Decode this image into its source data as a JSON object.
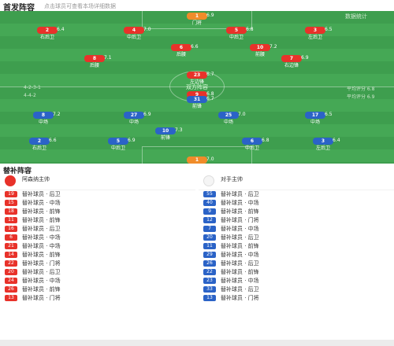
{
  "header": {
    "title": "首发阵容",
    "subtitle": "点击球员可查看本场详细数据"
  },
  "pitch": {
    "center_label": "双方阵容",
    "home_formation_label": "4-2-3-1",
    "away_formation_label": "4-4-2",
    "home_rating_label": "平均评分 6.8",
    "away_rating_label": "平均评分 6.9",
    "corner_tr": "数据统计",
    "home_color": "#e8322a",
    "away_color": "#2b63c7",
    "gk_color": "#f08c2a"
  },
  "home_players": [
    {
      "num": "1",
      "name": "门将",
      "rating": "6.9"
    },
    {
      "num": "2",
      "name": "右后卫",
      "rating": "6.4"
    },
    {
      "num": "4",
      "name": "中后卫",
      "rating": "7.0"
    },
    {
      "num": "5",
      "name": "中后卫",
      "rating": "6.8"
    },
    {
      "num": "3",
      "name": "左后卫",
      "rating": "6.5"
    },
    {
      "num": "8",
      "name": "后腰",
      "rating": "7.1"
    },
    {
      "num": "6",
      "name": "后腰",
      "rating": "6.6"
    },
    {
      "num": "10",
      "name": "前腰",
      "rating": "7.2"
    },
    {
      "num": "7",
      "name": "右边锋",
      "rating": "6.9"
    },
    {
      "num": "23",
      "name": "左边锋",
      "rating": "6.7"
    },
    {
      "num": "9",
      "name": "中锋",
      "rating": "6.8"
    }
  ],
  "away_players": [
    {
      "num": "1",
      "name": "门将",
      "rating": "7.0"
    },
    {
      "num": "2",
      "name": "右后卫",
      "rating": "6.6"
    },
    {
      "num": "5",
      "name": "中后卫",
      "rating": "6.9"
    },
    {
      "num": "6",
      "name": "中后卫",
      "rating": "6.8"
    },
    {
      "num": "3",
      "name": "左后卫",
      "rating": "6.4"
    },
    {
      "num": "8",
      "name": "中场",
      "rating": "7.2"
    },
    {
      "num": "27",
      "name": "中场",
      "rating": "6.9"
    },
    {
      "num": "25",
      "name": "中场",
      "rating": "7.0"
    },
    {
      "num": "17",
      "name": "中场",
      "rating": "6.5"
    },
    {
      "num": "10",
      "name": "前锋",
      "rating": "7.3"
    },
    {
      "num": "31",
      "name": "前锋",
      "rating": "6.7"
    }
  ],
  "subs": {
    "title": "替补阵容",
    "home_coach": "阿森纳主帅",
    "away_coach": "对手主帅",
    "home": [
      {
        "num": "19",
        "name": "替补球员",
        "pos": "后卫",
        "event": ""
      },
      {
        "num": "15",
        "name": "替补球员",
        "pos": "中场",
        "event": ""
      },
      {
        "num": "18",
        "name": "替补球员",
        "pos": "前锋",
        "event": ""
      },
      {
        "num": "11",
        "name": "替补球员",
        "pos": "前锋",
        "event": ""
      },
      {
        "num": "16",
        "name": "替补球员",
        "pos": "后卫",
        "event": ""
      },
      {
        "num": "6",
        "name": "替补球员",
        "pos": "中场",
        "event": ""
      },
      {
        "num": "21",
        "name": "替补球员",
        "pos": "中场",
        "event": ""
      },
      {
        "num": "14",
        "name": "替补球员",
        "pos": "前锋",
        "event": ""
      },
      {
        "num": "22",
        "name": "替补球员",
        "pos": "门将",
        "event": ""
      },
      {
        "num": "20",
        "name": "替补球员",
        "pos": "后卫",
        "event": ""
      },
      {
        "num": "24",
        "name": "替补球员",
        "pos": "中场",
        "event": ""
      },
      {
        "num": "26",
        "name": "替补球员",
        "pos": "前锋",
        "event": ""
      },
      {
        "num": "13",
        "name": "替补球员",
        "pos": "门将",
        "event": ""
      }
    ],
    "away": [
      {
        "num": "55",
        "name": "替补球员",
        "pos": "后卫",
        "event": ""
      },
      {
        "num": "40",
        "name": "替补球员",
        "pos": "中场",
        "event": ""
      },
      {
        "num": "9",
        "name": "替补球员",
        "pos": "前锋",
        "event": ""
      },
      {
        "num": "12",
        "name": "替补球员",
        "pos": "门将",
        "event": ""
      },
      {
        "num": "7",
        "name": "替补球员",
        "pos": "中场",
        "event": ""
      },
      {
        "num": "20",
        "name": "替补球员",
        "pos": "后卫",
        "event": ""
      },
      {
        "num": "11",
        "name": "替补球员",
        "pos": "前锋",
        "event": ""
      },
      {
        "num": "29",
        "name": "替补球员",
        "pos": "中场",
        "event": ""
      },
      {
        "num": "26",
        "name": "替补球员",
        "pos": "后卫",
        "event": ""
      },
      {
        "num": "22",
        "name": "替补球员",
        "pos": "前锋",
        "event": ""
      },
      {
        "num": "23",
        "name": "替补球员",
        "pos": "中场",
        "event": ""
      },
      {
        "num": "33",
        "name": "替补球员",
        "pos": "后卫",
        "event": ""
      },
      {
        "num": "13",
        "name": "替补球员",
        "pos": "门将",
        "event": ""
      }
    ]
  }
}
